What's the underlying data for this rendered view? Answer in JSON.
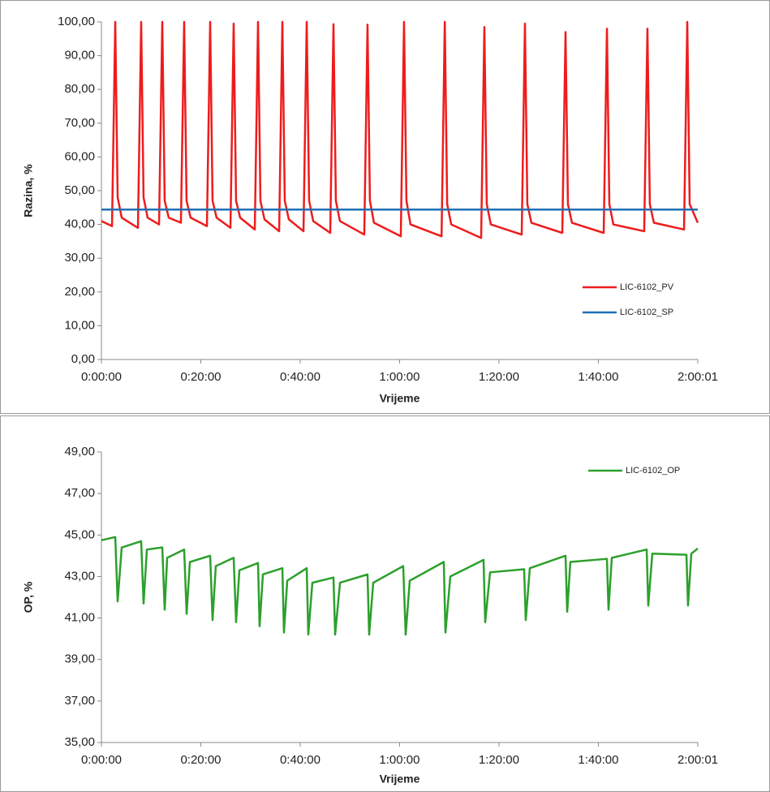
{
  "chart_data": [
    {
      "type": "line",
      "x_label": "Vrijeme",
      "y_label": "Razina, %",
      "xlim": [
        0,
        7201
      ],
      "xticks": [
        {
          "value": 0,
          "label": "0:00:00"
        },
        {
          "value": 1200,
          "label": "0:20:00"
        },
        {
          "value": 2400,
          "label": "0:40:00"
        },
        {
          "value": 3600,
          "label": "1:00:00"
        },
        {
          "value": 4800,
          "label": "1:20:00"
        },
        {
          "value": 6000,
          "label": "1:40:00"
        },
        {
          "value": 7201,
          "label": "2:00:01"
        }
      ],
      "ylim": [
        0,
        100
      ],
      "yticks": [
        {
          "value": 0,
          "label": "0,00"
        },
        {
          "value": 10,
          "label": "10,00"
        },
        {
          "value": 20,
          "label": "20,00"
        },
        {
          "value": 30,
          "label": "30,00"
        },
        {
          "value": 40,
          "label": "40,00"
        },
        {
          "value": 50,
          "label": "50,00"
        },
        {
          "value": 60,
          "label": "60,00"
        },
        {
          "value": 70,
          "label": "70,00"
        },
        {
          "value": 80,
          "label": "80,00"
        },
        {
          "value": 90,
          "label": "90,00"
        },
        {
          "value": 100,
          "label": "100,00"
        }
      ],
      "legend": "right",
      "series": [
        {
          "name": "LIC-6102_PV",
          "color": "#ee1c1c",
          "x": [
            0,
            128,
            167,
            196,
            245,
            441,
            480,
            509,
            558,
            696,
            735,
            764,
            813,
            960,
            999,
            1028,
            1077,
            1274,
            1313,
            1342,
            1391,
            1558,
            1597,
            1626,
            1675,
            1852,
            1891,
            1920,
            1969,
            2146,
            2185,
            2214,
            2263,
            2440,
            2479,
            2508,
            2557,
            2763,
            2802,
            2831,
            2880,
            3174,
            3213,
            3242,
            3291,
            3615,
            3654,
            3683,
            3732,
            4107,
            4146,
            4175,
            4224,
            4585,
            4624,
            4653,
            4702,
            5075,
            5114,
            5143,
            5192,
            5565,
            5604,
            5633,
            5682,
            6065,
            6104,
            6133,
            6182,
            6554,
            6593,
            6622,
            6671,
            7035,
            7074,
            7103,
            7201
          ],
          "values": [
            41,
            39.5,
            100,
            48,
            42,
            39,
            100,
            48,
            42,
            40,
            100,
            47,
            42,
            40.5,
            100,
            47,
            42,
            39.5,
            100,
            47,
            42,
            39,
            99.5,
            47,
            42,
            38.5,
            100,
            47,
            41.5,
            38,
            100,
            47,
            41.5,
            38,
            100,
            47,
            41,
            37.5,
            99.3,
            47,
            41,
            37,
            99.2,
            47,
            40.5,
            36.5,
            100,
            47,
            40,
            36.5,
            100,
            46,
            40,
            36,
            98.5,
            46,
            40,
            37,
            99.5,
            46,
            40.5,
            37.5,
            97,
            46,
            40.5,
            37.5,
            98,
            46,
            40,
            38,
            98,
            46,
            40.5,
            38.5,
            100,
            46,
            40.5
          ]
        },
        {
          "name": "LIC-6102_SP",
          "color": "#1f6fb5",
          "x": [
            0,
            7201
          ],
          "values": [
            44.4,
            44.4
          ]
        }
      ]
    },
    {
      "type": "line",
      "x_label": "Vrijeme",
      "y_label": "OP, %",
      "xlim": [
        0,
        7201
      ],
      "xticks": [
        {
          "value": 0,
          "label": "0:00:00"
        },
        {
          "value": 1200,
          "label": "0:20:00"
        },
        {
          "value": 2400,
          "label": "0:40:00"
        },
        {
          "value": 3600,
          "label": "1:00:00"
        },
        {
          "value": 4800,
          "label": "1:20:00"
        },
        {
          "value": 6000,
          "label": "1:40:00"
        },
        {
          "value": 7201,
          "label": "2:00:01"
        }
      ],
      "ylim": [
        35,
        49
      ],
      "yticks": [
        {
          "value": 35,
          "label": "35,00"
        },
        {
          "value": 37,
          "label": "37,00"
        },
        {
          "value": 39,
          "label": "39,00"
        },
        {
          "value": 41,
          "label": "41,00"
        },
        {
          "value": 43,
          "label": "43,00"
        },
        {
          "value": 45,
          "label": "45,00"
        },
        {
          "value": 47,
          "label": "47,00"
        },
        {
          "value": 49,
          "label": "49,00"
        }
      ],
      "legend": "top-right",
      "series": [
        {
          "name": "LIC-6102_OP",
          "color": "#2ca02c",
          "x": [
            0,
            167,
            196,
            245,
            480,
            509,
            549,
            735,
            764,
            794,
            999,
            1029,
            1068,
            1313,
            1342,
            1381,
            1597,
            1626,
            1666,
            1891,
            1910,
            1950,
            2185,
            2204,
            2244,
            2479,
            2498,
            2547,
            2802,
            2822,
            2881,
            3213,
            3233,
            3282,
            3644,
            3674,
            3723,
            4134,
            4154,
            4213,
            4614,
            4634,
            4693,
            5104,
            5124,
            5173,
            5604,
            5624,
            5662,
            6104,
            6123,
            6163,
            6584,
            6603,
            6652,
            7064,
            7083,
            7123,
            7201
          ],
          "values": [
            44.75,
            44.9,
            41.8,
            44.4,
            44.7,
            41.7,
            44.3,
            44.4,
            41.4,
            43.9,
            44.3,
            41.2,
            43.7,
            44,
            40.9,
            43.5,
            43.9,
            40.8,
            43.3,
            43.65,
            40.6,
            43.1,
            43.4,
            40.3,
            42.8,
            43.4,
            40.2,
            42.7,
            42.95,
            40.2,
            42.7,
            43.1,
            40.2,
            42.7,
            43.5,
            40.2,
            42.8,
            43.7,
            40.3,
            43,
            43.8,
            40.8,
            43.2,
            43.35,
            40.9,
            43.4,
            44,
            41.3,
            43.7,
            43.85,
            41.4,
            43.9,
            44.3,
            41.6,
            44.1,
            44.05,
            41.6,
            44.1,
            44.35
          ]
        }
      ]
    }
  ]
}
